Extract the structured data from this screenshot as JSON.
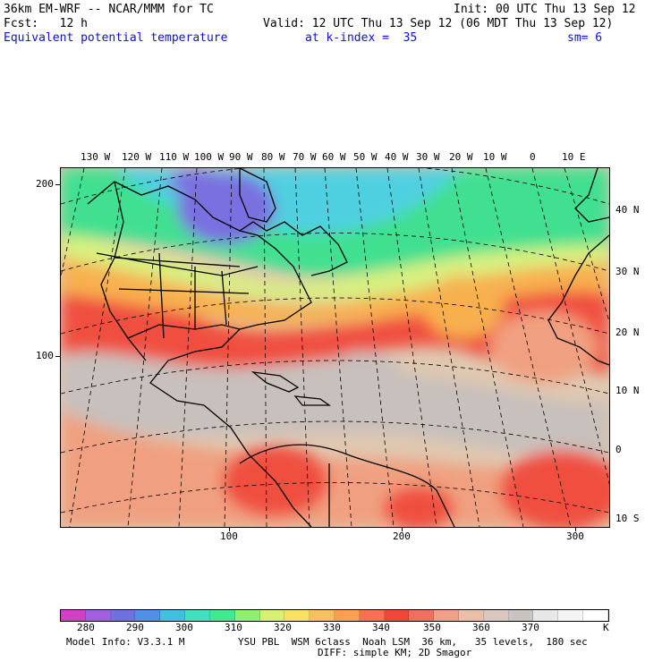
{
  "header": {
    "model_title": "36km EM-WRF -- NCAR/MMM for TC",
    "init": "Init: 00 UTC Thu 13 Sep 12",
    "forecast": "Fcst:   12 h",
    "valid": "Valid: 12 UTC Thu 13 Sep 12 (06 MDT Thu 13 Sep 12)",
    "field": "Equivalent potential temperature",
    "level": "at k-index =  35",
    "smoothing": "sm= 6"
  },
  "map": {
    "top_lon_labels": [
      "130 W",
      "120 W",
      "110 W",
      "100 W",
      "90 W",
      "80 W",
      "70 W",
      "60 W",
      "50 W",
      "40 W",
      "30 W",
      "20 W",
      "10 W",
      "0",
      "10 E"
    ],
    "right_lat_labels": [
      "40 N",
      "30 N",
      "20 N",
      "10 N",
      "0",
      "10 S"
    ],
    "left_grid_labels": [
      "200",
      "100"
    ],
    "bottom_grid_labels": [
      "100",
      "200",
      "300"
    ],
    "colors": {
      "cold": "#7a70e0",
      "cool": "#50d0e0",
      "green": "#40e090",
      "yellow": "#d8f080",
      "orange": "#f8b050",
      "red": "#f05040",
      "salmon": "#f0a080",
      "tan": "#e0c8b0",
      "gray": "#c8c0bc"
    }
  },
  "colorbar": {
    "colors": [
      "#d040c0",
      "#a060e0",
      "#7070e0",
      "#5090e8",
      "#40c0e0",
      "#40e0c0",
      "#40e890",
      "#90f070",
      "#d8f070",
      "#f8e060",
      "#f8c060",
      "#f8a050",
      "#f87050",
      "#f04838",
      "#f07060",
      "#f0a088",
      "#e8c0a8",
      "#d8c8c0",
      "#c8c4c0",
      "#e8e8e8",
      "#f4f4f4",
      "#ffffff"
    ],
    "labels": [
      "280",
      "290",
      "300",
      "310",
      "320",
      "330",
      "340",
      "350",
      "360",
      "370",
      "K"
    ]
  },
  "footer": {
    "model_info": "Model Info: V3.3.1 M",
    "physics": "YSU PBL  WSM 6class  Noah LSM  36 km,   35 levels,  180 sec",
    "diffusion": "DIFF: simple KM; 2D Smagor"
  }
}
